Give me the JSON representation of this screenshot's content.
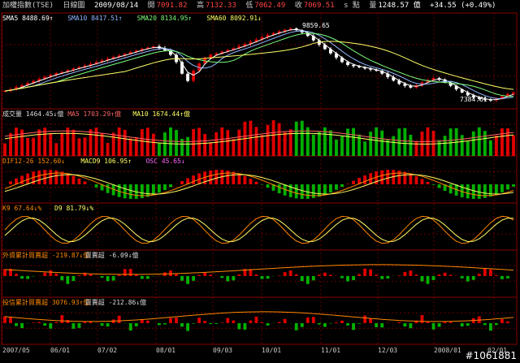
{
  "header": {
    "title": "加權指數(TSE)",
    "period": "日線圖",
    "date": "2009/08/14",
    "open_label": "開",
    "open": "7091.82",
    "high_label": "高",
    "high": "7132.33",
    "low_label": "低",
    "low": "7062.49",
    "close_label": "收",
    "close": "7069.51",
    "unit": "s 點",
    "vol_label": "量",
    "volume": "1248.57 億",
    "change": "+34.55 (+0.49%)"
  },
  "colors": {
    "up": "#e00000",
    "down": "#00b000",
    "bg": "#000000",
    "grid": "#6a0000",
    "text": "#cccccc"
  },
  "panels": {
    "price": {
      "labels": [
        {
          "text": "SMA5 8488.69↑",
          "color": "#ffffff"
        },
        {
          "text": "SMA10 8417.51↑",
          "color": "#8fb8ff"
        },
        {
          "text": "SMA20 8134.95↑",
          "color": "#7cff7c"
        },
        {
          "text": "SMA60 8092.91↓",
          "color": "#ffff66"
        }
      ],
      "ann_high": "9859.65",
      "ann_low": "7384.61"
    },
    "volume": {
      "labels": [
        {
          "text": "成交量 1464.45↓億",
          "color": "#dddddd"
        },
        {
          "text": "MA5 1703.29↑億",
          "color": "#ff6666"
        },
        {
          "text": "MA10 1674.44↑億",
          "color": "#ffff66"
        }
      ]
    },
    "macd": {
      "labels": [
        {
          "text": "DIF12-26 152.60↓",
          "color": "#ff8800"
        },
        {
          "text": "MACD9 106.95↑",
          "color": "#ffff66"
        },
        {
          "text": "OSC 45.65↓",
          "color": "#ff66ff"
        }
      ]
    },
    "kd": {
      "labels": [
        {
          "text": "K9 67.64↓%",
          "color": "#ff8800"
        },
        {
          "text": "D9 81.79↓%",
          "color": "#ffff66"
        }
      ]
    },
    "foreign": {
      "labels": [
        {
          "text": "外資累計買賣超 -219.87↓億",
          "color": "#ff8800"
        },
        {
          "text": "買賣超 -6.09↓億",
          "color": "#dddddd"
        }
      ]
    },
    "trust": {
      "labels": [
        {
          "text": "投信累計買賣超 3076.93↑億",
          "color": "#ff8800"
        },
        {
          "text": "買賣超 -212.86↓億",
          "color": "#dddddd"
        }
      ]
    }
  },
  "chart_data": {
    "type": "line",
    "title": "加權指數(TSE) 日線圖",
    "x_ticks": [
      "2007/05",
      "06/01",
      "07/02",
      "08/01",
      "09/03",
      "10/01",
      "11/01",
      "12/03",
      "2008/01",
      "02/01"
    ],
    "price_series": [
      7700,
      7760,
      7840,
      7900,
      7980,
      8050,
      8120,
      8190,
      8260,
      8320,
      8360,
      8420,
      8480,
      8530,
      8580,
      8640,
      8700,
      8760,
      8820,
      8880,
      8930,
      8980,
      9050,
      9100,
      9160,
      9200,
      9240,
      9180,
      9100,
      8950,
      8700,
      8300,
      8050,
      8400,
      8650,
      8850,
      8950,
      9000,
      9060,
      9120,
      9180,
      9250,
      9320,
      9400,
      9480,
      9560,
      9640,
      9700,
      9760,
      9810,
      9859,
      9800,
      9720,
      9600,
      9450,
      9300,
      9150,
      9000,
      8850,
      8700,
      8600,
      8560,
      8520,
      8480,
      8440,
      8400,
      8300,
      8180,
      8060,
      7950,
      7880,
      7820,
      7900,
      8000,
      8080,
      8150,
      8100,
      8000,
      7880,
      7760,
      7650,
      7550,
      7480,
      7430,
      7400,
      7384,
      7430,
      7520,
      7600,
      7650
    ],
    "price_range": [
      7200,
      10000
    ],
    "high_point": 9859.65,
    "low_point": 7384.61,
    "sma5": 8488.69,
    "sma10": 8417.51,
    "sma20": 8134.95,
    "sma60": 8092.91,
    "volume_range": [
      0,
      3000
    ],
    "macd_range": [
      -300,
      300
    ],
    "kd_range": [
      0,
      100
    ]
  },
  "watermark": "#1061881"
}
